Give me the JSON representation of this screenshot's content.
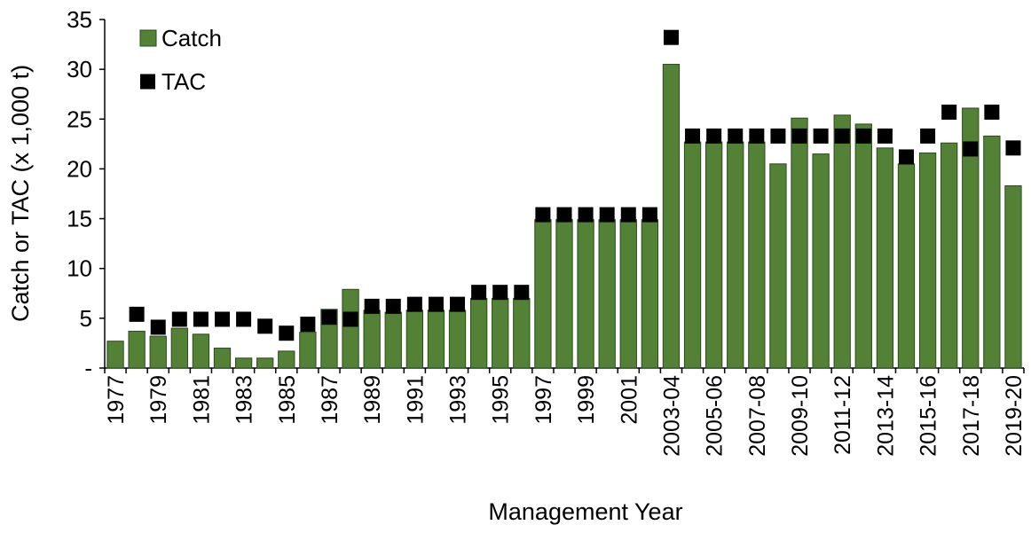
{
  "chart_data": {
    "type": "bar",
    "y_label": "Catch or TAC (x 1,000 t)",
    "x_label": "Management Year",
    "categories": [
      "1977",
      null,
      "1979",
      null,
      "1981",
      null,
      "1983",
      null,
      "1985",
      null,
      "1987",
      null,
      "1989",
      null,
      "1991",
      null,
      "1993",
      null,
      "1995",
      null,
      "1997",
      null,
      "1999",
      null,
      "2001",
      null,
      "2003-04",
      null,
      "2005-06",
      null,
      "2007-08",
      null,
      "2009-10",
      null,
      "2011-12",
      null,
      "2013-14",
      null,
      "2015-16",
      null,
      "2017-18",
      null,
      "2019-20"
    ],
    "series": [
      {
        "name": "Catch",
        "type": "bar",
        "color": "#538135",
        "values": [
          2.7,
          3.7,
          3.2,
          4.0,
          3.4,
          2.0,
          1.0,
          1.0,
          1.7,
          3.6,
          5.9,
          7.9,
          5.8,
          5.6,
          5.8,
          5.8,
          5.8,
          7.0,
          7.0,
          7.0,
          14.9,
          14.9,
          14.9,
          14.9,
          14.9,
          14.9,
          30.5,
          22.7,
          22.7,
          22.7,
          22.7,
          20.5,
          25.1,
          21.5,
          25.4,
          24.5,
          22.1,
          20.5,
          21.6,
          22.6,
          26.1,
          23.3,
          18.3
        ]
      },
      {
        "name": "TAC",
        "type": "scatter",
        "marker": "square",
        "color": "#000000",
        "values": [
          null,
          5.4,
          4.1,
          4.9,
          4.9,
          4.9,
          4.9,
          4.2,
          3.5,
          4.4,
          5.1,
          4.9,
          6.2,
          6.2,
          6.4,
          6.4,
          6.4,
          7.6,
          7.6,
          7.6,
          15.4,
          15.4,
          15.4,
          15.4,
          15.4,
          15.4,
          33.2,
          23.3,
          23.3,
          23.3,
          23.3,
          23.3,
          23.3,
          23.3,
          23.3,
          23.3,
          23.3,
          21.2,
          23.3,
          25.7,
          22.0,
          25.7,
          22.1
        ]
      }
    ],
    "ylim": [
      0,
      35
    ],
    "yticks": [
      {
        "value": 0,
        "label": "-"
      },
      5,
      10,
      15,
      20,
      25,
      30,
      35
    ],
    "legend": "top-left",
    "grid": false
  }
}
